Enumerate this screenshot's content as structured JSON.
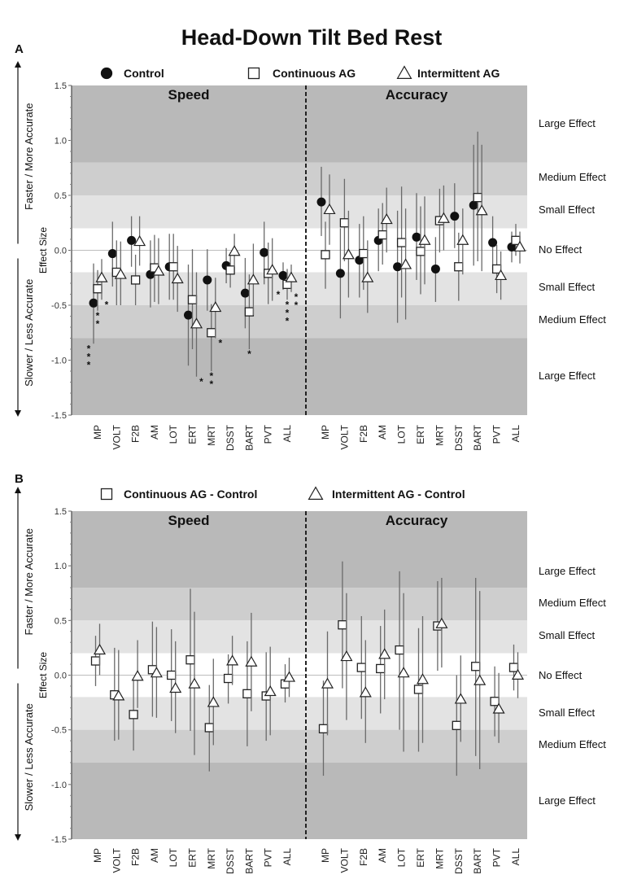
{
  "title": "Head-Down Tilt Bed Rest",
  "side_labels": {
    "up": "Faster / More Accurate",
    "down": "Slower / Less Accurate"
  },
  "effect_labels": [
    "Large Effect",
    "Medium Effect",
    "Small Effect",
    "No Effect",
    "Small Effect",
    "Medium Effect",
    "Large Effect"
  ],
  "effect_thresholds": [
    0.2,
    0.5,
    0.8
  ],
  "colors": {
    "large": "#b9b9b9",
    "medium": "#cecece",
    "small": "#e3e3e3",
    "none": "#ffffff",
    "bar": "#6a6a6a"
  },
  "chart_data": [
    {
      "panel_label": "A",
      "type": "scatter",
      "ylabel": "Effect Size",
      "ylim": [
        -1.5,
        1.5
      ],
      "yticks": [
        "1.5",
        "1.0",
        "0.5",
        "0.0",
        "-0.5",
        "-1.0",
        "-1.5"
      ],
      "halves": [
        "Speed",
        "Accuracy"
      ],
      "categories": [
        "MP",
        "VOLT",
        "F2B",
        "AM",
        "LOT",
        "ERT",
        "MRT",
        "DSST",
        "BART",
        "PVT",
        "ALL"
      ],
      "legend": [
        "Control",
        "Continuous AG",
        "Intermittent AG"
      ],
      "series": [
        {
          "name": "Control",
          "marker": "circle",
          "speed": {
            "values": [
              -0.48,
              -0.03,
              0.09,
              -0.22,
              -0.15,
              -0.59,
              -0.27,
              -0.14,
              -0.39,
              -0.02,
              -0.23
            ],
            "ci": [
              [
                -0.85,
                -0.12
              ],
              [
                -0.33,
                0.26
              ],
              [
                -0.15,
                0.31
              ],
              [
                -0.52,
                0.09
              ],
              [
                -0.45,
                0.15
              ],
              [
                -1.05,
                -0.13
              ],
              [
                -0.55,
                0.01
              ],
              [
                -0.3,
                0.02
              ],
              [
                -0.71,
                -0.07
              ],
              [
                -0.31,
                0.26
              ],
              [
                -0.36,
                -0.11
              ]
            ],
            "sig": [
              "***",
              "",
              "",
              "",
              "",
              "",
              "",
              "",
              "",
              "",
              "*"
            ]
          },
          "accuracy": {
            "values": [
              0.44,
              -0.21,
              -0.09,
              0.09,
              -0.15,
              0.12,
              -0.17,
              0.31,
              0.41,
              0.07,
              0.03
            ],
            "ci": [
              [
                0.13,
                0.76
              ],
              [
                -0.62,
                0.2
              ],
              [
                -0.43,
                0.24
              ],
              [
                -0.19,
                0.38
              ],
              [
                -0.66,
                0.36
              ],
              [
                -0.27,
                0.52
              ],
              [
                -0.47,
                0.12
              ],
              [
                0.02,
                0.61
              ],
              [
                -0.14,
                0.96
              ],
              [
                -0.18,
                0.31
              ],
              [
                -0.11,
                0.17
              ]
            ],
            "sig": [
              "",
              "",
              "",
              "",
              "",
              "",
              "",
              "",
              "",
              "",
              ""
            ]
          }
        },
        {
          "name": "Continuous AG",
          "marker": "square",
          "speed": {
            "values": [
              -0.35,
              -0.2,
              -0.27,
              -0.16,
              -0.15,
              -0.45,
              -0.75,
              -0.18,
              -0.56,
              -0.21,
              -0.31
            ],
            "ci": [
              [
                -0.55,
                -0.18
              ],
              [
                -0.5,
                0.09
              ],
              [
                -0.5,
                -0.04
              ],
              [
                -0.47,
                0.14
              ],
              [
                -0.45,
                0.15
              ],
              [
                -0.9,
                0.01
              ],
              [
                -1.1,
                -0.49
              ],
              [
                -0.34,
                -0.02
              ],
              [
                -0.9,
                -0.22
              ],
              [
                -0.49,
                0.07
              ],
              [
                -0.45,
                -0.17
              ]
            ],
            "sig": [
              "**",
              "",
              "",
              "",
              "",
              "",
              "**",
              "",
              "*",
              "",
              "***"
            ]
          },
          "accuracy": {
            "values": [
              -0.04,
              0.25,
              -0.03,
              0.14,
              0.07,
              -0.01,
              0.27,
              -0.15,
              0.48,
              -0.17,
              0.09
            ],
            "ci": [
              [
                -0.35,
                0.26
              ],
              [
                -0.1,
                0.65
              ],
              [
                -0.36,
                0.31
              ],
              [
                -0.13,
                0.43
              ],
              [
                -0.43,
                0.58
              ],
              [
                -0.4,
                0.4
              ],
              [
                -0.02,
                0.56
              ],
              [
                -0.46,
                0.16
              ],
              [
                -0.1,
                1.08
              ],
              [
                -0.39,
                0.05
              ],
              [
                -0.05,
                0.24
              ]
            ],
            "sig": [
              "",
              "",
              "",
              "",
              "",
              "",
              "",
              "",
              "",
              "",
              ""
            ]
          }
        },
        {
          "name": "Intermittent AG",
          "marker": "triangle",
          "speed": {
            "values": [
              -0.25,
              -0.22,
              0.08,
              -0.19,
              -0.26,
              -0.67,
              -0.52,
              -0.01,
              -0.27,
              -0.18,
              -0.25
            ],
            "ci": [
              [
                -0.45,
                -0.08
              ],
              [
                -0.5,
                0.08
              ],
              [
                -0.14,
                0.31
              ],
              [
                -0.49,
                0.11
              ],
              [
                -0.56,
                0.04
              ],
              [
                -1.15,
                -0.2
              ],
              [
                -0.8,
                -0.25
              ],
              [
                -0.15,
                0.15
              ],
              [
                -0.59,
                0.06
              ],
              [
                -0.46,
                0.11
              ],
              [
                -0.38,
                -0.13
              ]
            ],
            "sig": [
              "*",
              "",
              "",
              "",
              "",
              "*",
              "*",
              "",
              "",
              "",
              "**"
            ]
          },
          "accuracy": {
            "values": [
              0.37,
              -0.04,
              -0.25,
              0.28,
              -0.13,
              0.09,
              0.29,
              0.09,
              0.36,
              -0.23,
              0.03
            ],
            "ci": [
              [
                0.05,
                0.69
              ],
              [
                -0.43,
                0.36
              ],
              [
                -0.57,
                0.09
              ],
              [
                -0.02,
                0.57
              ],
              [
                -0.63,
                0.38
              ],
              [
                -0.31,
                0.49
              ],
              [
                0.0,
                0.59
              ],
              [
                -0.22,
                0.38
              ],
              [
                -0.19,
                0.96
              ],
              [
                -0.45,
                -0.01
              ],
              [
                -0.12,
                0.17
              ]
            ],
            "sig": [
              "",
              "",
              "",
              "",
              "",
              "",
              "",
              "",
              "",
              "",
              ""
            ]
          }
        }
      ]
    },
    {
      "panel_label": "B",
      "type": "scatter",
      "ylabel": "Effect Size",
      "ylim": [
        -1.5,
        1.5
      ],
      "yticks": [
        "1.5",
        "1.0",
        "0.5",
        "0.0",
        "-0.5",
        "-1.0",
        "-1.5"
      ],
      "halves": [
        "Speed",
        "Accuracy"
      ],
      "categories": [
        "MP",
        "VOLT",
        "F2B",
        "AM",
        "LOT",
        "ERT",
        "MRT",
        "DSST",
        "BART",
        "PVT",
        "ALL"
      ],
      "legend": [
        "Continuous AG - Control",
        "Intermittent AG - Control"
      ],
      "series": [
        {
          "name": "Continuous AG - Control",
          "marker": "square",
          "speed": {
            "values": [
              0.13,
              -0.18,
              -0.36,
              0.05,
              0.0,
              0.14,
              -0.48,
              -0.03,
              -0.17,
              -0.19,
              -0.08
            ],
            "ci": [
              [
                -0.1,
                0.36
              ],
              [
                -0.6,
                0.25
              ],
              [
                -0.69,
                -0.05
              ],
              [
                -0.38,
                0.49
              ],
              [
                -0.42,
                0.42
              ],
              [
                -0.51,
                0.79
              ],
              [
                -0.88,
                -0.09
              ],
              [
                -0.26,
                0.19
              ],
              [
                -0.65,
                0.31
              ],
              [
                -0.6,
                0.21
              ],
              [
                -0.25,
                0.1
              ]
            ],
            "sig": [
              "",
              "",
              "",
              "",
              "",
              "",
              "",
              "",
              "",
              "",
              ""
            ]
          },
          "accuracy": {
            "values": [
              -0.49,
              0.46,
              0.07,
              0.06,
              0.23,
              -0.13,
              0.45,
              -0.46,
              0.08,
              -0.24,
              0.07
            ],
            "ci": [
              [
                -0.92,
                -0.05
              ],
              [
                -0.12,
                1.04
              ],
              [
                -0.4,
                0.54
              ],
              [
                -0.35,
                0.45
              ],
              [
                -0.5,
                0.95
              ],
              [
                -0.7,
                0.43
              ],
              [
                0.04,
                0.86
              ],
              [
                -0.92,
                0.0
              ],
              [
                -0.74,
                0.89
              ],
              [
                -0.56,
                0.08
              ],
              [
                -0.14,
                0.28
              ]
            ],
            "sig": [
              "",
              "",
              "",
              "",
              "",
              "",
              "",
              "",
              "",
              "",
              ""
            ]
          }
        },
        {
          "name": "Intermittent AG - Control",
          "marker": "triangle",
          "speed": {
            "values": [
              0.23,
              -0.19,
              -0.01,
              0.02,
              -0.12,
              -0.08,
              -0.25,
              0.13,
              0.12,
              -0.15,
              -0.02
            ],
            "ci": [
              [
                0.0,
                0.47
              ],
              [
                -0.59,
                0.23
              ],
              [
                -0.3,
                0.32
              ],
              [
                -0.39,
                0.44
              ],
              [
                -0.53,
                0.31
              ],
              [
                -0.73,
                0.58
              ],
              [
                -0.64,
                0.15
              ],
              [
                -0.09,
                0.36
              ],
              [
                -0.33,
                0.57
              ],
              [
                -0.55,
                0.26
              ],
              [
                -0.2,
                0.16
              ]
            ],
            "sig": [
              "",
              "",
              "",
              "",
              "",
              "",
              "",
              "",
              "",
              "",
              ""
            ]
          },
          "accuracy": {
            "values": [
              -0.08,
              0.17,
              -0.16,
              0.19,
              0.02,
              -0.04,
              0.47,
              -0.22,
              -0.05,
              -0.31,
              0.0
            ],
            "ci": [
              [
                -0.55,
                0.4
              ],
              [
                -0.41,
                0.75
              ],
              [
                -0.62,
                0.32
              ],
              [
                -0.22,
                0.6
              ],
              [
                -0.7,
                0.75
              ],
              [
                -0.62,
                0.54
              ],
              [
                0.07,
                0.89
              ],
              [
                -0.61,
                0.18
              ],
              [
                -0.86,
                0.77
              ],
              [
                -0.62,
                0.02
              ],
              [
                -0.21,
                0.21
              ]
            ],
            "sig": [
              "",
              "",
              "",
              "",
              "",
              "",
              "",
              "",
              "",
              "",
              ""
            ]
          }
        }
      ]
    }
  ]
}
